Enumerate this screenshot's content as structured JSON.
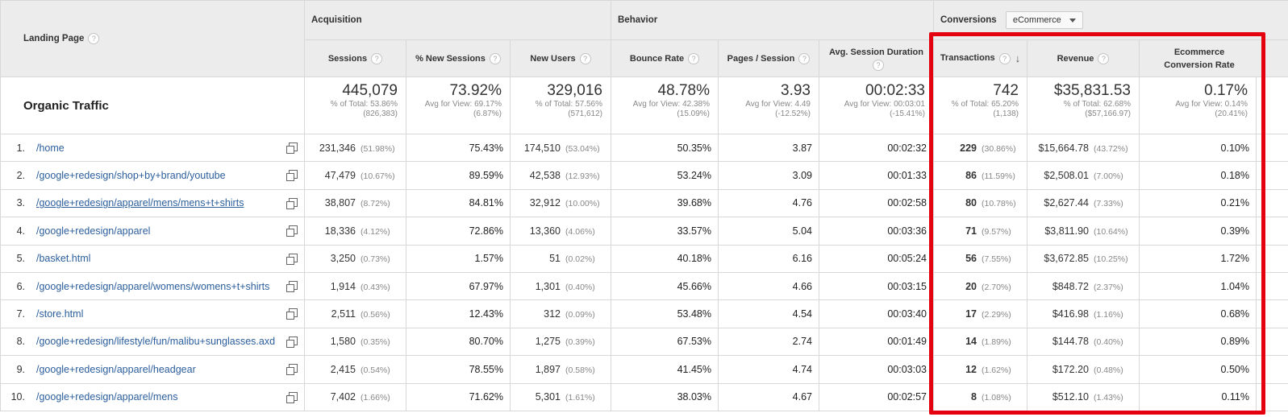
{
  "header": {
    "landing_page": "Landing Page",
    "groups": {
      "acquisition": "Acquisition",
      "behavior": "Behavior",
      "conversions": "Conversions",
      "conversion_select": "eCommerce"
    },
    "columns": {
      "sessions": "Sessions",
      "new_sessions": "% New Sessions",
      "new_users": "New Users",
      "bounce_rate": "Bounce Rate",
      "pages_session": "Pages / Session",
      "avg_duration": "Avg. Session Duration",
      "transactions": "Transactions",
      "revenue": "Revenue",
      "conv_rate": "Ecommerce Conversion Rate"
    }
  },
  "totals": {
    "label": "Organic Traffic",
    "sessions": {
      "value": "445,079",
      "l1": "% of Total: 53.86%",
      "l2": "(826,383)"
    },
    "new_sessions": {
      "value": "73.92%",
      "l1": "Avg for View: 69.17%",
      "l2": "(6.87%)"
    },
    "new_users": {
      "value": "329,016",
      "l1": "% of Total: 57.56%",
      "l2": "(571,612)"
    },
    "bounce_rate": {
      "value": "48.78%",
      "l1": "Avg for View: 42.38%",
      "l2": "(15.09%)"
    },
    "pages_session": {
      "value": "3.93",
      "l1": "Avg for View: 4.49",
      "l2": "(-12.52%)"
    },
    "avg_duration": {
      "value": "00:02:33",
      "l1": "Avg for View: 00:03:01",
      "l2": "(-15.41%)"
    },
    "transactions": {
      "value": "742",
      "l1": "% of Total: 65.20%",
      "l2": "(1,138)"
    },
    "revenue": {
      "value": "$35,831.53",
      "l1": "% of Total: 62.68%",
      "l2": "($57,166.97)"
    },
    "conv_rate": {
      "value": "0.17%",
      "l1": "Avg for View: 0.14%",
      "l2": "(20.41%)"
    }
  },
  "rows": [
    {
      "num": "1.",
      "path": "/home",
      "sessions": "231,346",
      "sessions_pct": "(51.98%)",
      "new_sessions": "75.43%",
      "new_users": "174,510",
      "new_users_pct": "(53.04%)",
      "bounce": "50.35%",
      "pages": "3.87",
      "duration": "00:02:32",
      "tx": "229",
      "tx_pct": "(30.86%)",
      "revenue": "$15,664.78",
      "revenue_pct": "(43.72%)",
      "conv": "0.10%"
    },
    {
      "num": "2.",
      "path": "/google+redesign/shop+by+brand/youtube",
      "sessions": "47,479",
      "sessions_pct": "(10.67%)",
      "new_sessions": "89.59%",
      "new_users": "42,538",
      "new_users_pct": "(12.93%)",
      "bounce": "53.24%",
      "pages": "3.09",
      "duration": "00:01:33",
      "tx": "86",
      "tx_pct": "(11.59%)",
      "revenue": "$2,508.01",
      "revenue_pct": "(7.00%)",
      "conv": "0.18%"
    },
    {
      "num": "3.",
      "path": "/google+redesign/apparel/mens/mens+t+shirts",
      "sessions": "38,807",
      "sessions_pct": "(8.72%)",
      "new_sessions": "84.81%",
      "new_users": "32,912",
      "new_users_pct": "(10.00%)",
      "bounce": "39.68%",
      "pages": "4.76",
      "duration": "00:02:58",
      "tx": "80",
      "tx_pct": "(10.78%)",
      "revenue": "$2,627.44",
      "revenue_pct": "(7.33%)",
      "conv": "0.21%"
    },
    {
      "num": "4.",
      "path": "/google+redesign/apparel",
      "sessions": "18,336",
      "sessions_pct": "(4.12%)",
      "new_sessions": "72.86%",
      "new_users": "13,360",
      "new_users_pct": "(4.06%)",
      "bounce": "33.57%",
      "pages": "5.04",
      "duration": "00:03:36",
      "tx": "71",
      "tx_pct": "(9.57%)",
      "revenue": "$3,811.90",
      "revenue_pct": "(10.64%)",
      "conv": "0.39%"
    },
    {
      "num": "5.",
      "path": "/basket.html",
      "sessions": "3,250",
      "sessions_pct": "(0.73%)",
      "new_sessions": "1.57%",
      "new_users": "51",
      "new_users_pct": "(0.02%)",
      "bounce": "40.18%",
      "pages": "6.16",
      "duration": "00:05:24",
      "tx": "56",
      "tx_pct": "(7.55%)",
      "revenue": "$3,672.85",
      "revenue_pct": "(10.25%)",
      "conv": "1.72%"
    },
    {
      "num": "6.",
      "path": "/google+redesign/apparel/womens/womens+t+shirts",
      "sessions": "1,914",
      "sessions_pct": "(0.43%)",
      "new_sessions": "67.97%",
      "new_users": "1,301",
      "new_users_pct": "(0.40%)",
      "bounce": "45.66%",
      "pages": "4.66",
      "duration": "00:03:15",
      "tx": "20",
      "tx_pct": "(2.70%)",
      "revenue": "$848.72",
      "revenue_pct": "(2.37%)",
      "conv": "1.04%"
    },
    {
      "num": "7.",
      "path": "/store.html",
      "sessions": "2,511",
      "sessions_pct": "(0.56%)",
      "new_sessions": "12.43%",
      "new_users": "312",
      "new_users_pct": "(0.09%)",
      "bounce": "53.48%",
      "pages": "4.54",
      "duration": "00:03:40",
      "tx": "17",
      "tx_pct": "(2.29%)",
      "revenue": "$416.98",
      "revenue_pct": "(1.16%)",
      "conv": "0.68%"
    },
    {
      "num": "8.",
      "path": "/google+redesign/lifestyle/fun/malibu+sunglasses.axd",
      "sessions": "1,580",
      "sessions_pct": "(0.35%)",
      "new_sessions": "80.70%",
      "new_users": "1,275",
      "new_users_pct": "(0.39%)",
      "bounce": "67.53%",
      "pages": "2.74",
      "duration": "00:01:49",
      "tx": "14",
      "tx_pct": "(1.89%)",
      "revenue": "$144.78",
      "revenue_pct": "(0.40%)",
      "conv": "0.89%"
    },
    {
      "num": "9.",
      "path": "/google+redesign/apparel/headgear",
      "sessions": "2,415",
      "sessions_pct": "(0.54%)",
      "new_sessions": "78.55%",
      "new_users": "1,897",
      "new_users_pct": "(0.58%)",
      "bounce": "41.45%",
      "pages": "4.74",
      "duration": "00:03:03",
      "tx": "12",
      "tx_pct": "(1.62%)",
      "revenue": "$172.20",
      "revenue_pct": "(0.48%)",
      "conv": "0.50%"
    },
    {
      "num": "10.",
      "path": "/google+redesign/apparel/mens",
      "sessions": "7,402",
      "sessions_pct": "(1.66%)",
      "new_sessions": "71.62%",
      "new_users": "5,301",
      "new_users_pct": "(1.61%)",
      "bounce": "38.03%",
      "pages": "4.67",
      "duration": "00:02:57",
      "tx": "8",
      "tx_pct": "(1.08%)",
      "revenue": "$512.10",
      "revenue_pct": "(1.43%)",
      "conv": "0.11%"
    }
  ],
  "colors": {
    "highlight": "#e4000f",
    "link": "#2b5e9c",
    "header_bg": "#ececec"
  }
}
